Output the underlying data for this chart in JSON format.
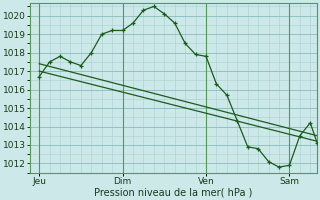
{
  "background_color": "#cce8e8",
  "plot_bg_color": "#cce8e8",
  "grid_color_minor": "#aacfcf",
  "grid_color_major": "#88bbbb",
  "line_color": "#1a5c1a",
  "xlabel": "Pression niveau de la mer( hPa )",
  "ylim": [
    1011.5,
    1020.7
  ],
  "yticks": [
    1012,
    1013,
    1014,
    1015,
    1016,
    1017,
    1018,
    1019,
    1020
  ],
  "day_labels": [
    "Jeu",
    "Dim",
    "Ven",
    "Sam"
  ],
  "day_positions": [
    0,
    72,
    144,
    216
  ],
  "xlim": [
    -8,
    240
  ],
  "series1_x": [
    0,
    9,
    18,
    27,
    36,
    45,
    54,
    63,
    72,
    81,
    90,
    99,
    108,
    117,
    126,
    135,
    144,
    153,
    162,
    171,
    180,
    189,
    198,
    207,
    216,
    225,
    234,
    240
  ],
  "series1_y": [
    1016.7,
    1017.5,
    1017.8,
    1017.5,
    1017.3,
    1018.0,
    1019.0,
    1019.2,
    1019.2,
    1019.6,
    1020.3,
    1020.5,
    1020.1,
    1019.6,
    1018.5,
    1017.9,
    1017.8,
    1016.3,
    1015.7,
    1014.3,
    1012.9,
    1012.8,
    1012.1,
    1011.8,
    1011.9,
    1013.5,
    1014.2,
    1013.1
  ],
  "series2_x": [
    0,
    240
  ],
  "series2_y": [
    1017.0,
    1013.2
  ],
  "series3_x": [
    0,
    240
  ],
  "series3_y": [
    1017.4,
    1013.5
  ]
}
